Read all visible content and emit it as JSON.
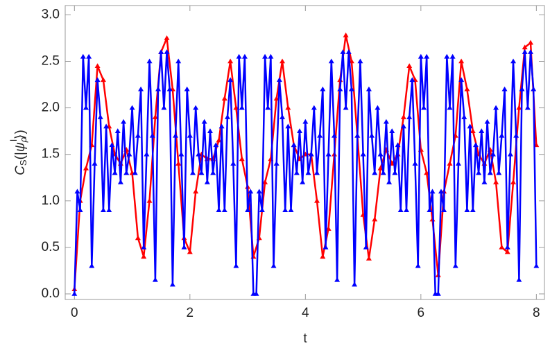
{
  "chart_data": {
    "type": "line",
    "xlabel": "t",
    "ylabel": [
      "C",
      "S",
      "(|",
      "ψ",
      "ρ",
      "l",
      "⟩)"
    ],
    "xlim": [
      -0.16,
      8.14
    ],
    "ylim": [
      -0.06,
      3.1
    ],
    "xticks": [
      0,
      2,
      4,
      6,
      8
    ],
    "yticks": [
      {
        "value": 0,
        "label": "0.0"
      },
      {
        "value": 0.5,
        "label": "0.5"
      },
      {
        "value": 1,
        "label": "1.0"
      },
      {
        "value": 1.5,
        "label": "1.5"
      },
      {
        "value": 2,
        "label": "2.0"
      },
      {
        "value": 2.5,
        "label": "2.5"
      },
      {
        "value": 3,
        "label": "3.0"
      }
    ],
    "series": [
      {
        "color": "#ff0000",
        "x": [
          0,
          0.1,
          0.2,
          0.3,
          0.4,
          0.5,
          0.6,
          0.7,
          0.8,
          0.9,
          1,
          1.1,
          1.2,
          1.3,
          1.4,
          1.5,
          1.6,
          1.7,
          1.8,
          1.9,
          2,
          2.1,
          2.2,
          2.3,
          2.4,
          2.5,
          2.6,
          2.7,
          2.8,
          2.9,
          3,
          3.1,
          3.2,
          3.3,
          3.4,
          3.5,
          3.6,
          3.7,
          3.8,
          3.9,
          4,
          4.1,
          4.2,
          4.3,
          4.4,
          4.5,
          4.6,
          4.7,
          4.8,
          4.9,
          5,
          5.1,
          5.2,
          5.3,
          5.4,
          5.5,
          5.6,
          5.7,
          5.8,
          5.9,
          6,
          6.1,
          6.2,
          6.3,
          6.4,
          6.5,
          6.6,
          6.7,
          6.8,
          6.9,
          7,
          7.1,
          7.2,
          7.3,
          7.4,
          7.5,
          7.6,
          7.7,
          7.8,
          7.9,
          8
        ],
        "values": [
          0.05,
          1.0,
          1.35,
          1.6,
          2.45,
          2.3,
          1.8,
          1.5,
          1.4,
          1.55,
          1.3,
          0.6,
          0.4,
          1.0,
          1.9,
          2.6,
          2.75,
          2.2,
          1.4,
          0.6,
          0.45,
          1.1,
          1.5,
          1.45,
          1.45,
          1.65,
          2.1,
          2.5,
          2.0,
          1.45,
          1.15,
          0.4,
          0.6,
          1.2,
          1.45,
          2.1,
          2.5,
          2.0,
          1.6,
          1.45,
          1.5,
          1.5,
          1.0,
          0.4,
          0.7,
          1.5,
          2.3,
          2.78,
          2.5,
          1.7,
          0.85,
          0.38,
          0.8,
          1.35,
          1.55,
          1.4,
          1.5,
          1.9,
          2.45,
          2.3,
          1.55,
          1.3,
          0.8,
          0.2,
          1.1,
          1.4,
          1.7,
          2.5,
          2.2,
          1.75,
          1.5,
          1.4,
          1.55,
          1.2,
          0.5,
          0.45,
          1.2,
          2.0,
          2.65,
          2.7,
          1.6
        ]
      },
      {
        "color": "#0000ff",
        "x": [
          0,
          0.05,
          0.1,
          0.15,
          0.2,
          0.25,
          0.3,
          0.35,
          0.4,
          0.45,
          0.5,
          0.55,
          0.6,
          0.65,
          0.7,
          0.75,
          0.8,
          0.85,
          0.9,
          0.95,
          1,
          1.05,
          1.1,
          1.15,
          1.2,
          1.25,
          1.3,
          1.35,
          1.4,
          1.45,
          1.5,
          1.55,
          1.6,
          1.65,
          1.7,
          1.75,
          1.8,
          1.85,
          1.9,
          1.95,
          2,
          2.05,
          2.1,
          2.15,
          2.2,
          2.25,
          2.3,
          2.35,
          2.4,
          2.45,
          2.5,
          2.55,
          2.6,
          2.65,
          2.7,
          2.75,
          2.8,
          2.85,
          2.9,
          2.95,
          3,
          3.05,
          3.1,
          3.15,
          3.2,
          3.25,
          3.3,
          3.35,
          3.4,
          3.45,
          3.5,
          3.55,
          3.6,
          3.65,
          3.7,
          3.75,
          3.8,
          3.85,
          3.9,
          3.95,
          4,
          4.05,
          4.1,
          4.15,
          4.2,
          4.25,
          4.3,
          4.35,
          4.4,
          4.45,
          4.5,
          4.55,
          4.6,
          4.65,
          4.7,
          4.75,
          4.8,
          4.85,
          4.9,
          4.95,
          5,
          5.05,
          5.1,
          5.15,
          5.2,
          5.25,
          5.3,
          5.35,
          5.4,
          5.45,
          5.5,
          5.55,
          5.6,
          5.65,
          5.7,
          5.75,
          5.8,
          5.85,
          5.9,
          5.95,
          6,
          6.05,
          6.1,
          6.15,
          6.2,
          6.25,
          6.3,
          6.35,
          6.4,
          6.45,
          6.5,
          6.55,
          6.6,
          6.65,
          6.7,
          6.75,
          6.8,
          6.85,
          6.9,
          6.95,
          7,
          7.05,
          7.1,
          7.15,
          7.2,
          7.25,
          7.3,
          7.35,
          7.4,
          7.45,
          7.5,
          7.55,
          7.6,
          7.65,
          7.7,
          7.75,
          7.8,
          7.85,
          7.9,
          7.95,
          8
        ],
        "values": [
          0.0,
          1.1,
          0.9,
          2.55,
          2.0,
          2.55,
          0.3,
          1.4,
          2.3,
          1.9,
          0.9,
          1.8,
          0.9,
          1.6,
          1.3,
          1.75,
          1.2,
          1.85,
          1.3,
          1.5,
          2.0,
          1.3,
          1.7,
          2.2,
          0.5,
          1.5,
          2.5,
          1.7,
          0.15,
          2.2,
          2.6,
          2.0,
          2.6,
          2.2,
          0.1,
          1.7,
          2.5,
          1.5,
          0.5,
          2.2,
          1.7,
          1.3,
          2.0,
          1.5,
          1.3,
          1.85,
          1.2,
          1.75,
          1.3,
          1.6,
          0.9,
          1.8,
          0.9,
          1.9,
          2.3,
          1.4,
          0.3,
          2.55,
          2.0,
          2.55,
          0.9,
          1.1,
          0.0,
          0.0,
          1.1,
          0.9,
          2.55,
          2.0,
          2.55,
          0.3,
          1.4,
          2.3,
          1.9,
          0.9,
          1.8,
          0.9,
          1.6,
          1.3,
          1.75,
          1.2,
          1.85,
          1.3,
          1.5,
          2.0,
          1.3,
          1.7,
          2.2,
          0.5,
          1.5,
          2.5,
          1.7,
          0.15,
          2.2,
          2.6,
          2.0,
          2.6,
          2.2,
          0.1,
          1.7,
          2.5,
          1.5,
          0.5,
          2.2,
          1.7,
          1.3,
          2.0,
          1.5,
          1.3,
          1.85,
          1.2,
          1.75,
          1.3,
          1.6,
          0.9,
          1.8,
          0.9,
          1.9,
          2.3,
          1.4,
          0.3,
          2.55,
          2.0,
          2.55,
          0.9,
          1.1,
          0.0,
          0.0,
          1.1,
          0.9,
          2.55,
          2.0,
          2.55,
          0.3,
          1.4,
          2.3,
          1.9,
          0.9,
          1.8,
          0.9,
          1.6,
          1.3,
          1.75,
          1.2,
          1.85,
          1.3,
          1.5,
          2.0,
          1.3,
          1.7,
          2.2,
          0.5,
          1.5,
          2.5,
          1.7,
          0.15,
          2.2,
          2.6,
          2.0,
          2.6,
          2.2,
          0.3
        ]
      }
    ]
  }
}
